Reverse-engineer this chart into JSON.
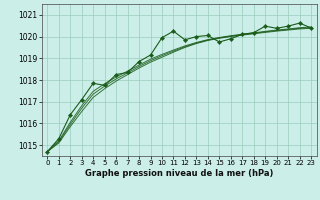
{
  "title": "Graphe pression niveau de la mer (hPa)",
  "bg_color": "#cceee8",
  "plot_bg_color": "#cceee8",
  "grid_color": "#99ccbb",
  "line_color": "#1a5c1a",
  "marker_color": "#1a5c1a",
  "xlim": [
    -0.5,
    23.5
  ],
  "ylim": [
    1014.5,
    1021.5
  ],
  "yticks": [
    1015,
    1016,
    1017,
    1018,
    1019,
    1020,
    1021
  ],
  "xticks": [
    0,
    1,
    2,
    3,
    4,
    5,
    6,
    7,
    8,
    9,
    10,
    11,
    12,
    13,
    14,
    15,
    16,
    17,
    18,
    19,
    20,
    21,
    22,
    23
  ],
  "series_main": {
    "x": [
      0,
      1,
      2,
      3,
      4,
      5,
      6,
      7,
      8,
      9,
      10,
      11,
      12,
      13,
      14,
      15,
      16,
      17,
      18,
      19,
      20,
      21,
      22,
      23
    ],
    "y": [
      1014.7,
      1015.3,
      1016.4,
      1017.1,
      1017.85,
      1017.75,
      1018.25,
      1018.35,
      1018.85,
      1019.15,
      1019.95,
      1020.25,
      1019.85,
      1020.0,
      1020.05,
      1019.75,
      1019.9,
      1020.1,
      1020.18,
      1020.48,
      1020.38,
      1020.48,
      1020.62,
      1020.4
    ]
  },
  "series_smooth1": {
    "x": [
      0,
      1,
      2,
      3,
      4,
      5,
      6,
      7,
      8,
      9,
      10,
      11,
      12,
      13,
      14,
      15,
      16,
      17,
      18,
      19,
      20,
      21,
      22,
      23
    ],
    "y": [
      1014.7,
      1015.1,
      1015.85,
      1016.55,
      1017.2,
      1017.6,
      1017.95,
      1018.25,
      1018.55,
      1018.82,
      1019.05,
      1019.28,
      1019.5,
      1019.68,
      1019.82,
      1019.92,
      1020.0,
      1020.07,
      1020.13,
      1020.19,
      1020.25,
      1020.3,
      1020.35,
      1020.38
    ]
  },
  "series_smooth2": {
    "x": [
      0,
      1,
      2,
      3,
      4,
      5,
      6,
      7,
      8,
      9,
      10,
      11,
      12,
      13,
      14,
      15,
      16,
      17,
      18,
      19,
      20,
      21,
      22,
      23
    ],
    "y": [
      1014.7,
      1015.15,
      1015.95,
      1016.7,
      1017.35,
      1017.72,
      1018.05,
      1018.33,
      1018.62,
      1018.89,
      1019.12,
      1019.33,
      1019.53,
      1019.7,
      1019.84,
      1019.94,
      1020.02,
      1020.09,
      1020.15,
      1020.22,
      1020.28,
      1020.33,
      1020.38,
      1020.41
    ]
  },
  "series_smooth3": {
    "x": [
      0,
      1,
      2,
      3,
      4,
      5,
      6,
      7,
      8,
      9,
      10,
      11,
      12,
      13,
      14,
      15,
      16,
      17,
      18,
      19,
      20,
      21,
      22,
      23
    ],
    "y": [
      1014.7,
      1015.2,
      1016.05,
      1016.82,
      1017.48,
      1017.83,
      1018.14,
      1018.41,
      1018.69,
      1018.96,
      1019.18,
      1019.38,
      1019.57,
      1019.73,
      1019.86,
      1019.96,
      1020.04,
      1020.11,
      1020.17,
      1020.24,
      1020.3,
      1020.35,
      1020.41,
      1020.44
    ]
  }
}
